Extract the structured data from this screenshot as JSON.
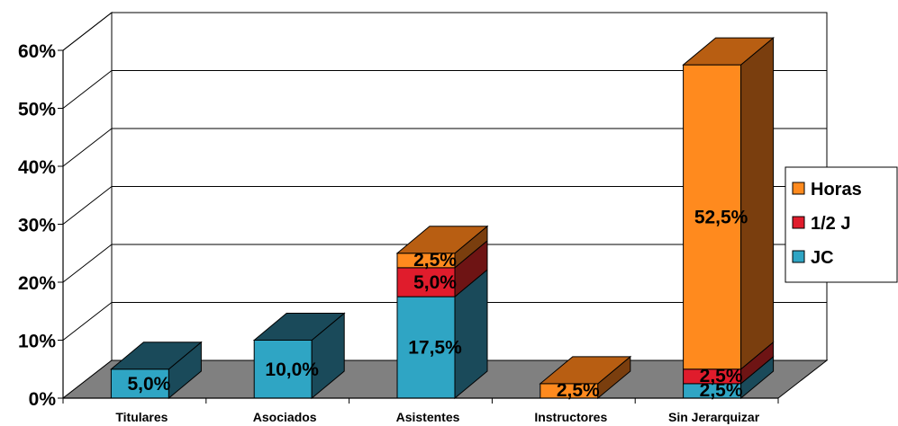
{
  "chart_data": {
    "type": "bar",
    "stacked": true,
    "three_d": true,
    "categories": [
      "Titulares",
      "Asociados",
      "Asistentes",
      "Instructores",
      "Sin Jerarquizar"
    ],
    "series": [
      {
        "name": "JC",
        "values": [
          5.0,
          10.0,
          17.5,
          0,
          2.5
        ],
        "labels": [
          "5,0%",
          "10,0%",
          "17,5%",
          "",
          "2,5%"
        ]
      },
      {
        "name": "1/2 J",
        "values": [
          0,
          0,
          5.0,
          0,
          2.5
        ],
        "labels": [
          "",
          "",
          "5,0%",
          "",
          "2,5%"
        ]
      },
      {
        "name": "Horas",
        "values": [
          0,
          0,
          2.5,
          2.5,
          52.5
        ],
        "labels": [
          "",
          "",
          "2,5%",
          "2,5%",
          "52,5%"
        ]
      }
    ],
    "yticks": [
      "0%",
      "10%",
      "20%",
      "30%",
      "40%",
      "50%",
      "60%"
    ],
    "ylim": [
      0,
      60
    ],
    "grid": true,
    "legend_position": "right",
    "legend_order": [
      "Horas",
      "1/2 J",
      "JC"
    ],
    "colors": {
      "JC": {
        "front": "#2fa5c4",
        "side": "#1a4a5a",
        "top": "#1a4a5a"
      },
      "1/2 J": {
        "front": "#e01c2c",
        "side": "#6e1414",
        "top": "#6e1414"
      },
      "Horas": {
        "front": "#ff8a1e",
        "side": "#7a3e0e",
        "top": "#b85e12"
      },
      "floor": "#808080",
      "grid": "#000000"
    }
  }
}
